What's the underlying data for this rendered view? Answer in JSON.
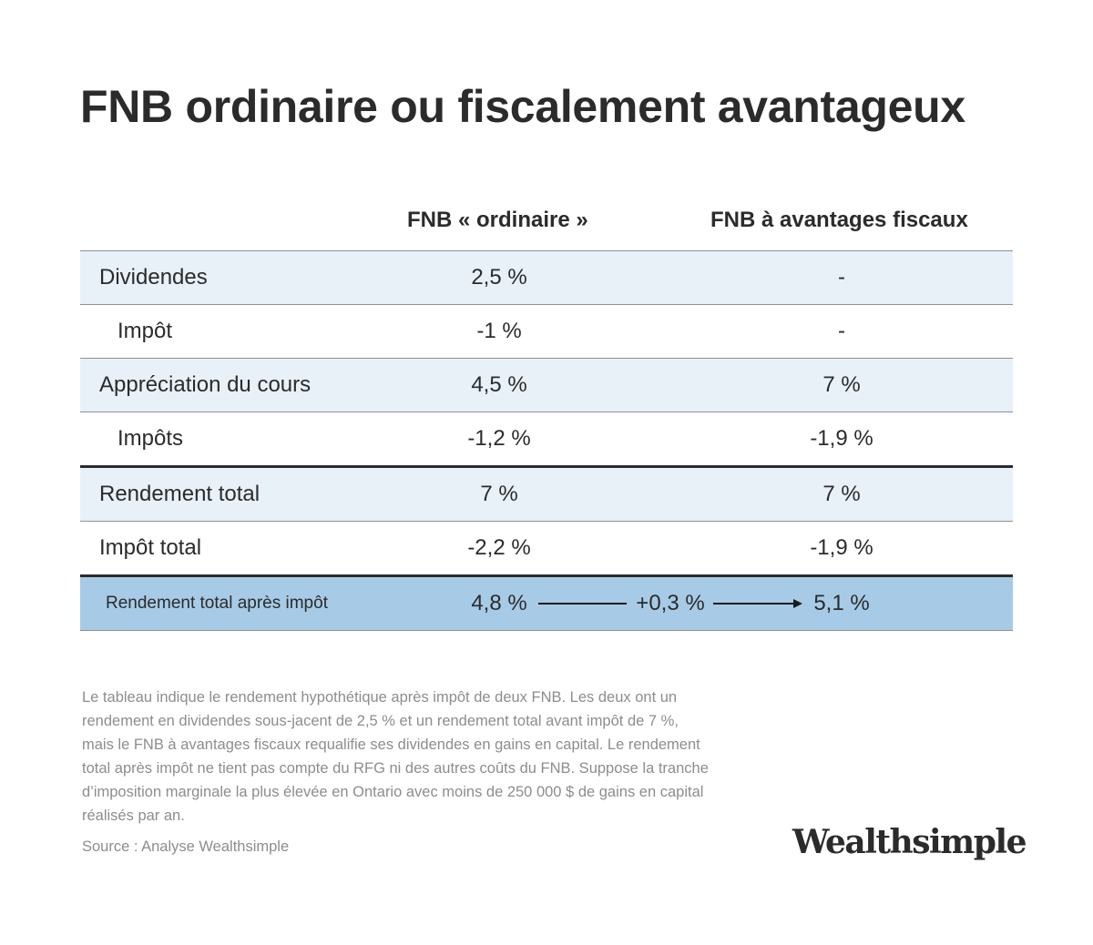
{
  "title": "FNB ordinaire ou fiscalement avantageux",
  "columns": [
    "FNB « ordinaire »",
    "FNB à avantages fiscaux"
  ],
  "rows": [
    {
      "label": "Dividendes",
      "v1": "2,5 %",
      "v2": "-"
    },
    {
      "label": "Impôt",
      "v1": "-1 %",
      "v2": "-"
    },
    {
      "label": "Appréciation du cours",
      "v1": "4,5 %",
      "v2": "7 %"
    },
    {
      "label": "Impôts",
      "v1": "-1,2 %",
      "v2": "-1,9 %"
    },
    {
      "label": "Rendement total",
      "v1": "7 %",
      "v2": "7 %"
    },
    {
      "label": "Impôt total",
      "v1": "-2,2 %",
      "v2": "-1,9 %"
    },
    {
      "label": "Rendement total après impôt",
      "v1": "4,8 %",
      "difference": "+0,3 %",
      "v2": "5,1 %"
    }
  ],
  "note": "Le tableau indique le rendement hypothétique après impôt de deux FNB. Les deux ont un rendement en dividendes sous-jacent de 2,5 % et un rendement total avant impôt de 7 %, mais le FNB à avantages fiscaux requalifie ses dividendes en gains en capital. Le rendement total après impôt ne tient pas compte du RFG ni des autres coûts du FNB. Suppose la tranche d’imposition marginale la plus élevée en Ontario avec moins de 250 000 $ de gains en capital réalisés par an.",
  "source": "Source : Analyse Wealthsimple",
  "logo": "Wealthsimple",
  "colors": {
    "text": "#2b2b2b",
    "row_shade": "#e8f0f8",
    "highlight_row": "#a7cbe6",
    "note_text": "#8c8d8e"
  }
}
